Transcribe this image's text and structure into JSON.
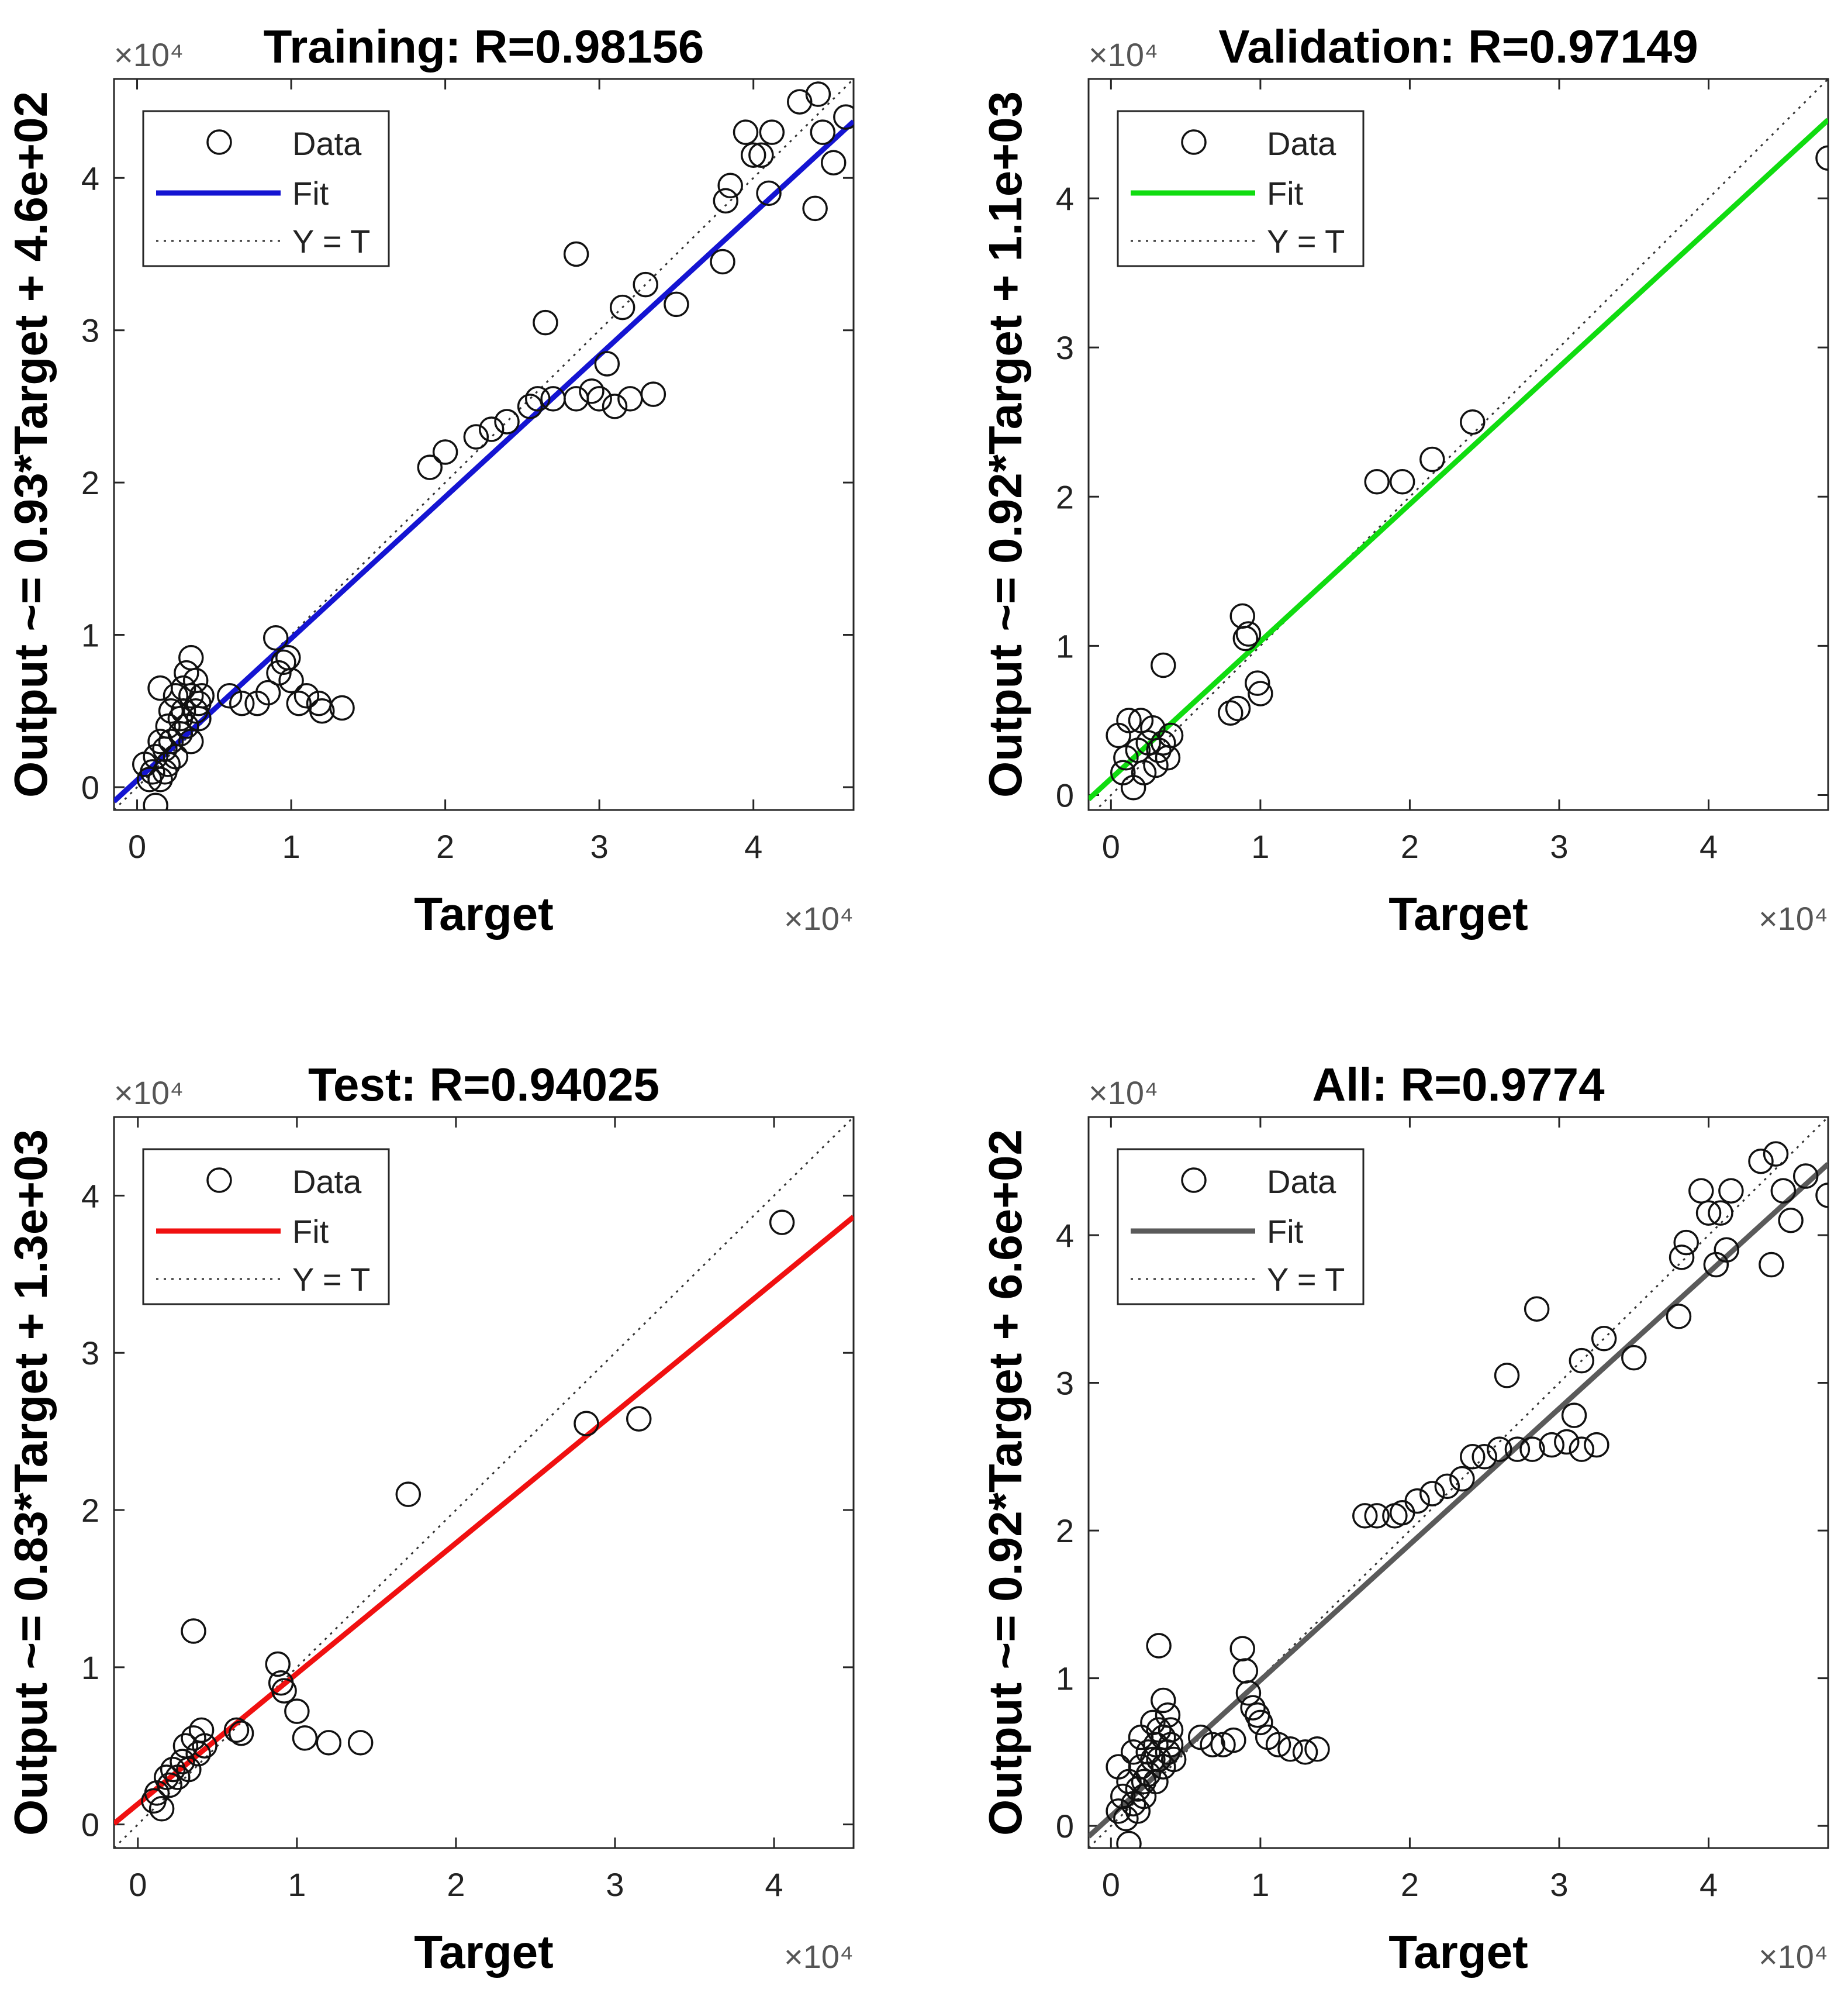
{
  "chart_data": [
    {
      "type": "scatter",
      "title": "Training: R=0.98156",
      "xlabel": "Target",
      "ylabel": "Output ~= 0.93*Target + 4.6e+02",
      "x_multiplier": "×10⁴",
      "y_multiplier": "×10⁴",
      "xlim": [
        -0.15,
        4.65
      ],
      "ylim": [
        -0.15,
        4.65
      ],
      "xticks": [
        "0",
        "1",
        "2",
        "3",
        "4"
      ],
      "yticks": [
        "0",
        "1",
        "2",
        "3",
        "4"
      ],
      "fit": {
        "slope": 0.93,
        "intercept": 0.046,
        "color": "#1414d2"
      },
      "legend": {
        "position": "top-left",
        "entries": [
          "Data",
          "Fit",
          "Y = T"
        ]
      },
      "points": [
        [
          0.05,
          0.15
        ],
        [
          0.08,
          0.05
        ],
        [
          0.1,
          0.1
        ],
        [
          0.12,
          0.2
        ],
        [
          0.12,
          -0.12
        ],
        [
          0.15,
          0.3
        ],
        [
          0.15,
          0.05
        ],
        [
          0.18,
          0.25
        ],
        [
          0.18,
          0.1
        ],
        [
          0.2,
          0.4
        ],
        [
          0.2,
          0.15
        ],
        [
          0.22,
          0.5
        ],
        [
          0.22,
          0.3
        ],
        [
          0.25,
          0.6
        ],
        [
          0.25,
          0.2
        ],
        [
          0.28,
          0.45
        ],
        [
          0.28,
          0.35
        ],
        [
          0.3,
          0.65
        ],
        [
          0.3,
          0.5
        ],
        [
          0.32,
          0.75
        ],
        [
          0.32,
          0.4
        ],
        [
          0.35,
          0.85
        ],
        [
          0.35,
          0.6
        ],
        [
          0.35,
          0.3
        ],
        [
          0.38,
          0.7
        ],
        [
          0.38,
          0.5
        ],
        [
          0.4,
          0.55
        ],
        [
          0.4,
          0.45
        ],
        [
          0.42,
          0.6
        ],
        [
          0.15,
          0.65
        ],
        [
          0.6,
          0.6
        ],
        [
          0.68,
          0.55
        ],
        [
          0.78,
          0.55
        ],
        [
          0.85,
          0.62
        ],
        [
          0.9,
          0.98
        ],
        [
          0.92,
          0.75
        ],
        [
          0.95,
          0.82
        ],
        [
          0.98,
          0.85
        ],
        [
          1.0,
          0.7
        ],
        [
          1.05,
          0.55
        ],
        [
          1.1,
          0.6
        ],
        [
          1.18,
          0.55
        ],
        [
          1.2,
          0.5
        ],
        [
          1.33,
          0.52
        ],
        [
          1.9,
          2.1
        ],
        [
          2.0,
          2.2
        ],
        [
          2.2,
          2.3
        ],
        [
          2.3,
          2.35
        ],
        [
          2.4,
          2.4
        ],
        [
          2.55,
          2.5
        ],
        [
          2.6,
          2.55
        ],
        [
          2.65,
          3.05
        ],
        [
          2.7,
          2.55
        ],
        [
          2.85,
          3.5
        ],
        [
          2.85,
          2.55
        ],
        [
          2.95,
          2.6
        ],
        [
          3.0,
          2.55
        ],
        [
          3.05,
          2.78
        ],
        [
          3.1,
          2.5
        ],
        [
          3.15,
          3.15
        ],
        [
          3.2,
          2.55
        ],
        [
          3.3,
          3.3
        ],
        [
          3.35,
          2.58
        ],
        [
          3.5,
          3.17
        ],
        [
          3.8,
          3.45
        ],
        [
          3.82,
          3.85
        ],
        [
          3.85,
          3.95
        ],
        [
          3.95,
          4.3
        ],
        [
          4.0,
          4.15
        ],
        [
          4.05,
          4.15
        ],
        [
          4.1,
          3.9
        ],
        [
          4.12,
          4.3
        ],
        [
          4.3,
          4.5
        ],
        [
          4.4,
          3.8
        ],
        [
          4.42,
          4.55
        ],
        [
          4.45,
          4.3
        ],
        [
          4.52,
          4.1
        ],
        [
          4.6,
          4.4
        ]
      ]
    },
    {
      "type": "scatter",
      "title": "Validation: R=0.97149",
      "xlabel": "Target",
      "ylabel": "Output ~= 0.92*Target + 1.1e+03",
      "x_multiplier": "×10⁴",
      "y_multiplier": "×10⁴",
      "xlim": [
        -0.15,
        4.8
      ],
      "ylim": [
        -0.1,
        4.8
      ],
      "xticks": [
        "0",
        "1",
        "2",
        "3",
        "4"
      ],
      "yticks": [
        "0",
        "1",
        "2",
        "3",
        "4"
      ],
      "fit": {
        "slope": 0.92,
        "intercept": 0.11,
        "color": "#10dc10"
      },
      "legend": {
        "position": "top-left",
        "entries": [
          "Data",
          "Fit",
          "Y = T"
        ]
      },
      "points": [
        [
          0.05,
          0.4
        ],
        [
          0.08,
          0.15
        ],
        [
          0.1,
          0.25
        ],
        [
          0.12,
          0.5
        ],
        [
          0.15,
          0.05
        ],
        [
          0.18,
          0.3
        ],
        [
          0.2,
          0.5
        ],
        [
          0.22,
          0.15
        ],
        [
          0.25,
          0.35
        ],
        [
          0.28,
          0.45
        ],
        [
          0.3,
          0.2
        ],
        [
          0.32,
          0.3
        ],
        [
          0.35,
          0.35
        ],
        [
          0.38,
          0.25
        ],
        [
          0.35,
          0.87
        ],
        [
          0.4,
          0.4
        ],
        [
          0.8,
          0.55
        ],
        [
          0.85,
          0.58
        ],
        [
          0.88,
          1.2
        ],
        [
          0.9,
          1.05
        ],
        [
          0.92,
          1.08
        ],
        [
          0.98,
          0.75
        ],
        [
          1.0,
          0.68
        ],
        [
          1.78,
          2.1
        ],
        [
          1.95,
          2.1
        ],
        [
          2.15,
          2.25
        ],
        [
          2.42,
          2.5
        ],
        [
          4.8,
          4.27
        ]
      ]
    },
    {
      "type": "scatter",
      "title": "Test: R=0.94025",
      "xlabel": "Target",
      "ylabel": "Output ~= 0.83*Target + 1.3e+03",
      "x_multiplier": "×10⁴",
      "y_multiplier": "×10⁴",
      "xlim": [
        -0.15,
        4.5
      ],
      "ylim": [
        -0.15,
        4.5
      ],
      "xticks": [
        "0",
        "1",
        "2",
        "3",
        "4"
      ],
      "yticks": [
        "0",
        "1",
        "2",
        "3",
        "4"
      ],
      "fit": {
        "slope": 0.83,
        "intercept": 0.13,
        "color": "#f01010"
      },
      "legend": {
        "position": "top-left",
        "entries": [
          "Data",
          "Fit",
          "Y = T"
        ]
      },
      "points": [
        [
          0.1,
          0.15
        ],
        [
          0.12,
          0.2
        ],
        [
          0.15,
          0.1
        ],
        [
          0.18,
          0.3
        ],
        [
          0.2,
          0.25
        ],
        [
          0.22,
          0.35
        ],
        [
          0.25,
          0.3
        ],
        [
          0.28,
          0.4
        ],
        [
          0.3,
          0.5
        ],
        [
          0.32,
          0.35
        ],
        [
          0.35,
          0.55
        ],
        [
          0.38,
          0.45
        ],
        [
          0.4,
          0.6
        ],
        [
          0.42,
          0.5
        ],
        [
          0.35,
          1.23
        ],
        [
          0.62,
          0.6
        ],
        [
          0.65,
          0.58
        ],
        [
          0.88,
          1.02
        ],
        [
          0.9,
          0.9
        ],
        [
          0.92,
          0.85
        ],
        [
          1.0,
          0.72
        ],
        [
          1.05,
          0.55
        ],
        [
          1.2,
          0.52
        ],
        [
          1.4,
          0.52
        ],
        [
          1.7,
          2.1
        ],
        [
          2.82,
          2.55
        ],
        [
          3.15,
          2.58
        ],
        [
          4.05,
          3.83
        ]
      ]
    },
    {
      "type": "scatter",
      "title": "All: R=0.9774",
      "xlabel": "Target",
      "ylabel": "Output ~= 0.92*Target + 6.6e+02",
      "x_multiplier": "×10⁴",
      "y_multiplier": "×10⁴",
      "xlim": [
        -0.15,
        4.8
      ],
      "ylim": [
        -0.15,
        4.8
      ],
      "xticks": [
        "0",
        "1",
        "2",
        "3",
        "4"
      ],
      "yticks": [
        "0",
        "1",
        "2",
        "3",
        "4"
      ],
      "fit": {
        "slope": 0.92,
        "intercept": 0.066,
        "color": "#5a5a5a"
      },
      "legend": {
        "position": "top-left",
        "entries": [
          "Data",
          "Fit",
          "Y = T"
        ]
      },
      "points": [
        [
          0.05,
          0.1
        ],
        [
          0.05,
          0.4
        ],
        [
          0.08,
          0.2
        ],
        [
          0.1,
          0.05
        ],
        [
          0.12,
          0.3
        ],
        [
          0.12,
          -0.12
        ],
        [
          0.15,
          0.15
        ],
        [
          0.15,
          0.5
        ],
        [
          0.18,
          0.25
        ],
        [
          0.18,
          0.1
        ],
        [
          0.2,
          0.4
        ],
        [
          0.2,
          0.6
        ],
        [
          0.22,
          0.3
        ],
        [
          0.22,
          0.2
        ],
        [
          0.25,
          0.5
        ],
        [
          0.25,
          0.35
        ],
        [
          0.28,
          0.45
        ],
        [
          0.28,
          0.7
        ],
        [
          0.3,
          0.55
        ],
        [
          0.3,
          0.3
        ],
        [
          0.32,
          0.65
        ],
        [
          0.32,
          0.45
        ],
        [
          0.35,
          0.85
        ],
        [
          0.35,
          0.6
        ],
        [
          0.35,
          0.4
        ],
        [
          0.38,
          0.75
        ],
        [
          0.38,
          0.5
        ],
        [
          0.4,
          0.55
        ],
        [
          0.4,
          0.65
        ],
        [
          0.42,
          0.45
        ],
        [
          0.32,
          1.22
        ],
        [
          0.6,
          0.6
        ],
        [
          0.68,
          0.55
        ],
        [
          0.75,
          0.55
        ],
        [
          0.82,
          0.58
        ],
        [
          0.88,
          1.2
        ],
        [
          0.9,
          1.05
        ],
        [
          0.92,
          0.9
        ],
        [
          0.95,
          0.8
        ],
        [
          0.98,
          0.75
        ],
        [
          1.0,
          0.7
        ],
        [
          1.05,
          0.6
        ],
        [
          1.12,
          0.55
        ],
        [
          1.2,
          0.52
        ],
        [
          1.3,
          0.5
        ],
        [
          1.38,
          0.52
        ],
        [
          1.7,
          2.1
        ],
        [
          1.78,
          2.1
        ],
        [
          1.9,
          2.1
        ],
        [
          1.95,
          2.12
        ],
        [
          2.05,
          2.2
        ],
        [
          2.15,
          2.25
        ],
        [
          2.25,
          2.3
        ],
        [
          2.35,
          2.35
        ],
        [
          2.42,
          2.5
        ],
        [
          2.5,
          2.5
        ],
        [
          2.6,
          2.55
        ],
        [
          2.65,
          3.05
        ],
        [
          2.72,
          2.55
        ],
        [
          2.82,
          2.55
        ],
        [
          2.85,
          3.5
        ],
        [
          2.95,
          2.58
        ],
        [
          3.05,
          2.6
        ],
        [
          3.1,
          2.78
        ],
        [
          3.15,
          2.55
        ],
        [
          3.15,
          3.15
        ],
        [
          3.25,
          2.58
        ],
        [
          3.3,
          3.3
        ],
        [
          3.5,
          3.17
        ],
        [
          3.8,
          3.45
        ],
        [
          3.82,
          3.85
        ],
        [
          3.85,
          3.95
        ],
        [
          3.95,
          4.3
        ],
        [
          4.0,
          4.15
        ],
        [
          4.05,
          3.8
        ],
        [
          4.08,
          4.15
        ],
        [
          4.12,
          3.9
        ],
        [
          4.15,
          4.3
        ],
        [
          4.35,
          4.5
        ],
        [
          4.42,
          3.8
        ],
        [
          4.45,
          4.55
        ],
        [
          4.5,
          4.3
        ],
        [
          4.55,
          4.1
        ],
        [
          4.65,
          4.4
        ],
        [
          4.8,
          4.27
        ]
      ]
    }
  ]
}
